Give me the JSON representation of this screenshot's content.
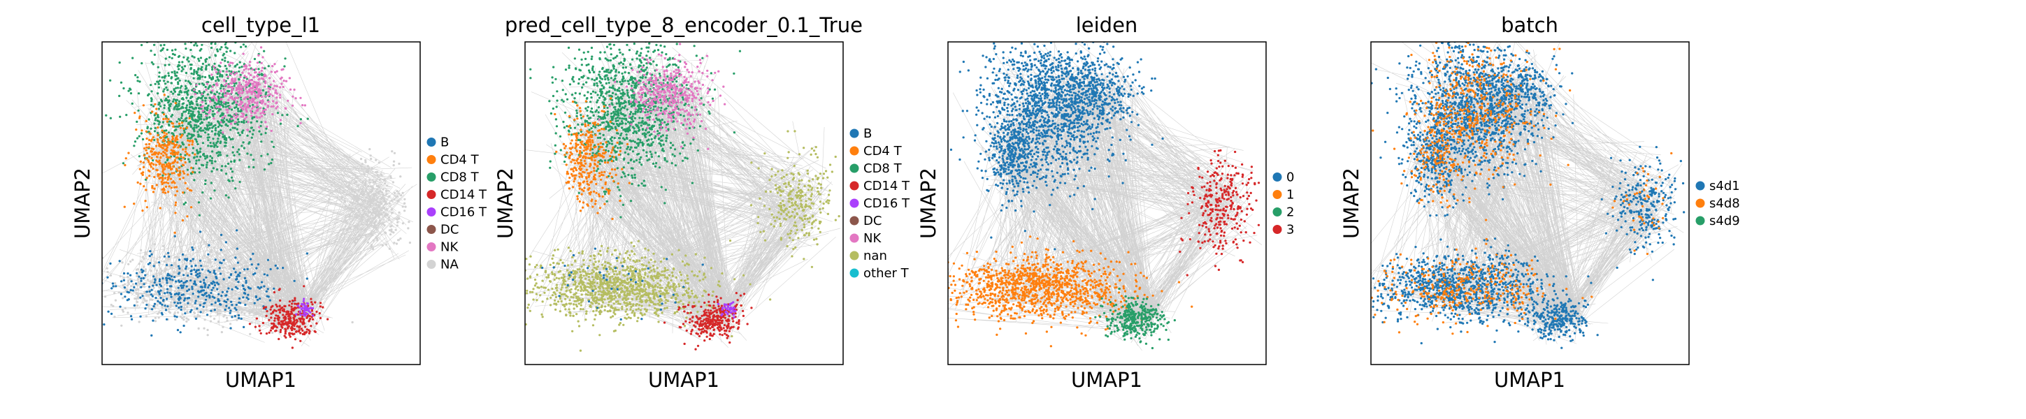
{
  "panels": [
    {
      "title": "cell_type_l1",
      "xlabel": "UMAP1",
      "ylabel": "UMAP2",
      "legend": [
        {
          "label": "B",
          "color": "#1f77b4"
        },
        {
          "label": "CD4 T",
          "color": "#ff7f0e"
        },
        {
          "label": "CD8 T",
          "color": "#279e68"
        },
        {
          "label": "CD14 T",
          "color": "#d62728"
        },
        {
          "label": "CD16 T",
          "color": "#aa40fc"
        },
        {
          "label": "DC",
          "color": "#8c564b"
        },
        {
          "label": "NK",
          "color": "#e377c2"
        },
        {
          "label": "NA",
          "color": "#d3d3d3"
        }
      ],
      "clusters": [
        "B",
        "CD4 T",
        "CD8 T",
        "CD14 T",
        "CD16 T",
        "NK",
        "NA"
      ]
    },
    {
      "title": "pred_cell_type_8_encoder_0.1_True",
      "xlabel": "UMAP1",
      "ylabel": "UMAP2",
      "legend": [
        {
          "label": "B",
          "color": "#1f77b4"
        },
        {
          "label": "CD4 T",
          "color": "#ff7f0e"
        },
        {
          "label": "CD8 T",
          "color": "#279e68"
        },
        {
          "label": "CD14 T",
          "color": "#d62728"
        },
        {
          "label": "CD16 T",
          "color": "#aa40fc"
        },
        {
          "label": "DC",
          "color": "#8c564b"
        },
        {
          "label": "NK",
          "color": "#e377c2"
        },
        {
          "label": "nan",
          "color": "#b5bd61"
        },
        {
          "label": "other T",
          "color": "#17becf"
        }
      ],
      "clusters": [
        "nan",
        "CD4 T",
        "CD8 T",
        "NK",
        "CD14 T",
        "CD16 T"
      ]
    },
    {
      "title": "leiden",
      "xlabel": "UMAP1",
      "ylabel": "UMAP2",
      "legend": [
        {
          "label": "0",
          "color": "#1f77b4"
        },
        {
          "label": "1",
          "color": "#ff7f0e"
        },
        {
          "label": "2",
          "color": "#279e68"
        },
        {
          "label": "3",
          "color": "#d62728"
        }
      ],
      "clusters": [
        "0",
        "1",
        "2",
        "3"
      ]
    },
    {
      "title": "batch",
      "xlabel": "UMAP1",
      "ylabel": "UMAP2",
      "legend": [
        {
          "label": "s4d1",
          "color": "#1f77b4"
        },
        {
          "label": "s4d8",
          "color": "#ff7f0e"
        },
        {
          "label": "s4d9",
          "color": "#279e68"
        }
      ],
      "clusters": [
        "s4d1",
        "s4d8"
      ]
    }
  ],
  "chart_data": [
    {
      "type": "scatter",
      "title": "cell_type_l1",
      "xlabel": "UMAP1",
      "ylabel": "UMAP2",
      "series": [
        {
          "name": "B"
        },
        {
          "name": "CD4 T"
        },
        {
          "name": "CD8 T"
        },
        {
          "name": "CD14 T"
        },
        {
          "name": "CD16 T"
        },
        {
          "name": "DC"
        },
        {
          "name": "NK"
        },
        {
          "name": "NA"
        }
      ],
      "grid": false,
      "legend_position": "right",
      "edges": "gray"
    },
    {
      "type": "scatter",
      "title": "pred_cell_type_8_encoder_0.1_True",
      "xlabel": "UMAP1",
      "ylabel": "UMAP2",
      "series": [
        {
          "name": "B"
        },
        {
          "name": "CD4 T"
        },
        {
          "name": "CD8 T"
        },
        {
          "name": "CD14 T"
        },
        {
          "name": "CD16 T"
        },
        {
          "name": "DC"
        },
        {
          "name": "NK"
        },
        {
          "name": "nan"
        },
        {
          "name": "other T"
        }
      ],
      "grid": false,
      "legend_position": "right",
      "edges": "gray"
    },
    {
      "type": "scatter",
      "title": "leiden",
      "xlabel": "UMAP1",
      "ylabel": "UMAP2",
      "series": [
        {
          "name": "0"
        },
        {
          "name": "1"
        },
        {
          "name": "2"
        },
        {
          "name": "3"
        }
      ],
      "grid": false,
      "legend_position": "right",
      "edges": "gray"
    },
    {
      "type": "scatter",
      "title": "batch",
      "xlabel": "UMAP1",
      "ylabel": "UMAP2",
      "series": [
        {
          "name": "s4d1"
        },
        {
          "name": "s4d8"
        },
        {
          "name": "s4d9"
        }
      ],
      "grid": false,
      "legend_position": "right",
      "edges": "gray"
    }
  ]
}
